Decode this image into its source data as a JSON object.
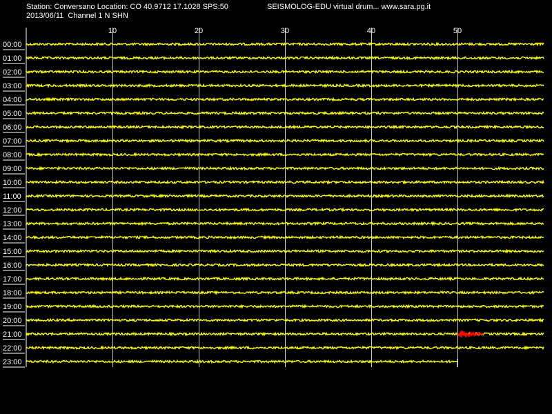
{
  "header": {
    "station_line": "Station: Conversano Location: CO 40.9712 17.1028 SPS:50",
    "date_channel_line": "2013/06/11  Channel 1 N SHN",
    "site_line": "SEISMOLOG-EDU virtual drum... www.sara.pg.it"
  },
  "colors": {
    "background": "#000000",
    "trace": "#ffff00",
    "event": "#ff0000",
    "grid": "#ffffff",
    "text": "#ffffff"
  },
  "chart_data": {
    "type": "line",
    "title": "",
    "xlabel": "",
    "ylabel": "",
    "x_ticks": [
      10,
      20,
      30,
      40,
      50
    ],
    "xlim": [
      0,
      60
    ],
    "x_unit": "minutes",
    "grid": true,
    "row_labels": [
      "00:00",
      "01:00",
      "02:00",
      "03:00",
      "04:00",
      "05:00",
      "06:00",
      "07:00",
      "08:00",
      "09:00",
      "10:00",
      "11:00",
      "12:00",
      "13:00",
      "14:00",
      "15:00",
      "16:00",
      "17:00",
      "18:00",
      "19:00",
      "20:00",
      "21:00",
      "22:00",
      "23:00"
    ],
    "last_row_end_minute": 50,
    "events": [
      {
        "row": "21:00",
        "start_minute": 50,
        "end_minute": 53,
        "color": "#ff0000"
      }
    ]
  }
}
